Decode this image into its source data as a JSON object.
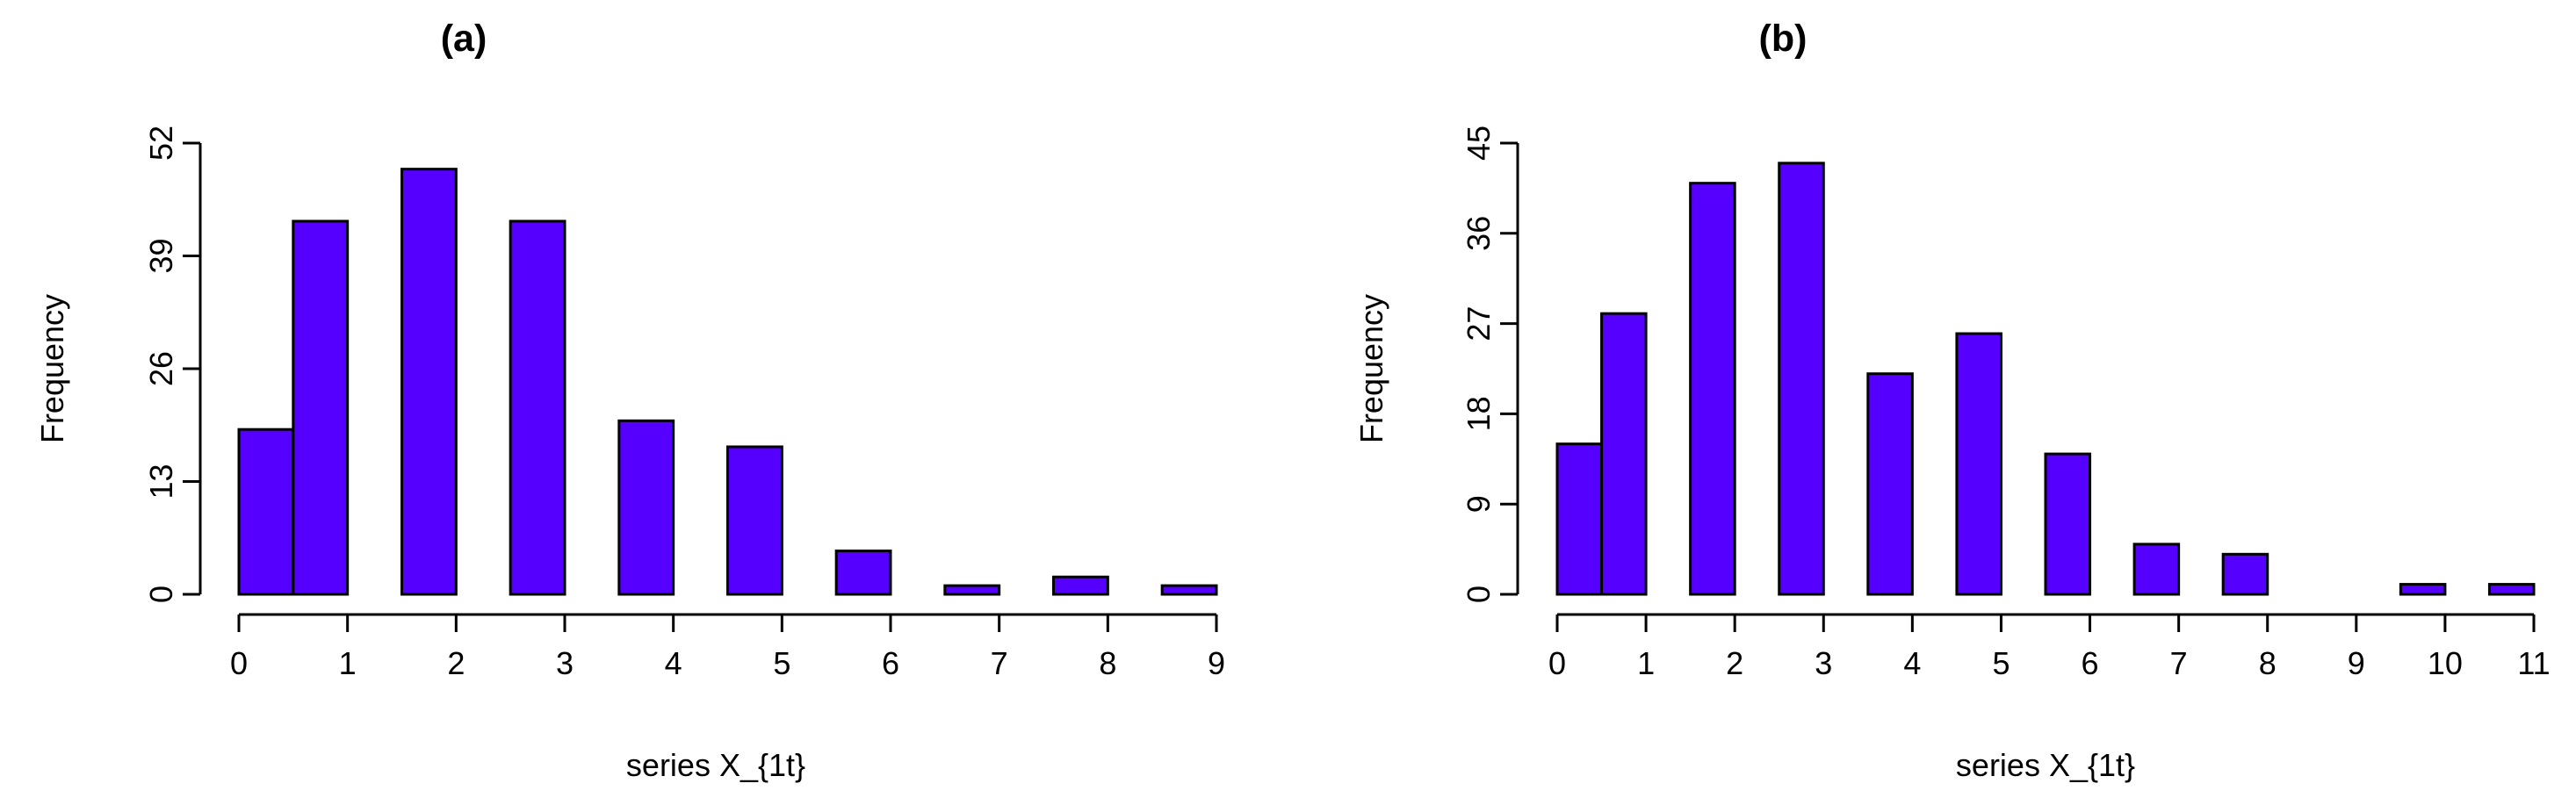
{
  "colors": {
    "bar_fill": "#5500ff",
    "bar_stroke": "#000000"
  },
  "chart_data": [
    {
      "type": "bar",
      "title": "(a)",
      "xlabel": "series X_{1t}",
      "ylabel": "Frequency",
      "bin_edges": [
        0,
        0.5,
        1,
        1.5,
        2,
        2.5,
        3,
        3.5,
        4,
        4.5,
        5,
        5.5,
        6,
        6.5,
        7,
        7.5,
        8,
        8.5,
        9
      ],
      "values": [
        19,
        43,
        0,
        49,
        0,
        43,
        0,
        20,
        0,
        17,
        0,
        5,
        0,
        1,
        0,
        2,
        0,
        1
      ],
      "xlim": [
        0,
        9
      ],
      "ylim": [
        0,
        52
      ],
      "xticks": [
        "0",
        "1",
        "2",
        "3",
        "4",
        "5",
        "6",
        "7",
        "8",
        "9"
      ],
      "yticks": [
        "0",
        "13",
        "26",
        "39",
        "52"
      ]
    },
    {
      "type": "bar",
      "title": "(b)",
      "xlabel": "series X_{1t}",
      "ylabel": "Frequency",
      "bin_edges": [
        0,
        0.5,
        1,
        1.5,
        2,
        2.5,
        3,
        3.5,
        4,
        4.5,
        5,
        5.5,
        6,
        6.5,
        7,
        7.5,
        8,
        8.5,
        9,
        9.5,
        10,
        10.5,
        11
      ],
      "values": [
        15,
        28,
        0,
        41,
        0,
        43,
        0,
        22,
        0,
        26,
        0,
        14,
        0,
        5,
        0,
        4,
        0,
        0,
        0,
        1,
        0,
        1
      ],
      "xlim": [
        0,
        11
      ],
      "ylim": [
        0,
        45
      ],
      "xticks": [
        "0",
        "1",
        "2",
        "3",
        "4",
        "5",
        "6",
        "7",
        "8",
        "9",
        "10",
        "11"
      ],
      "yticks": [
        "0",
        "9",
        "18",
        "27",
        "36",
        "45"
      ]
    }
  ]
}
